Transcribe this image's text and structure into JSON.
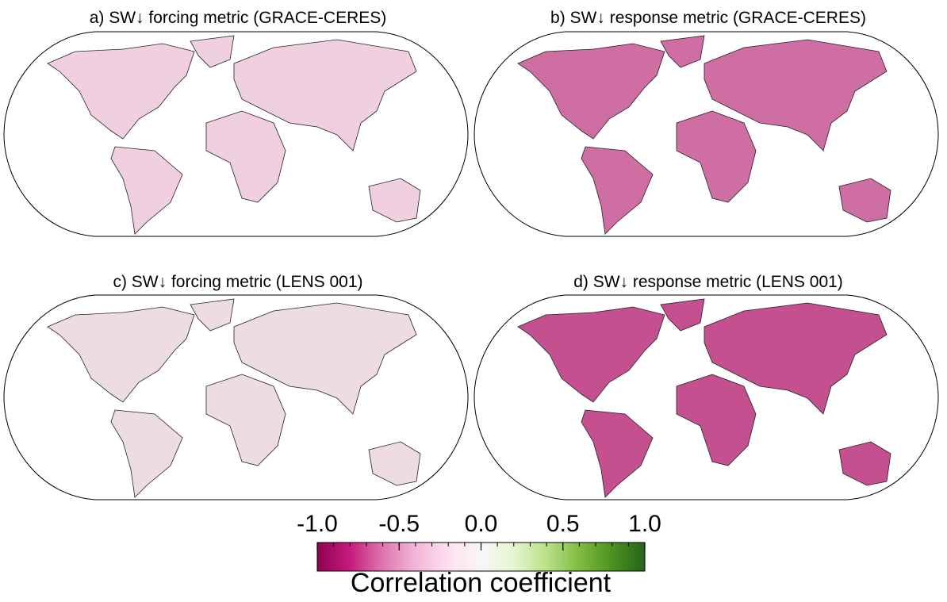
{
  "panels": [
    {
      "title": "a) SW↓ forcing metric (GRACE-CERES)"
    },
    {
      "title": "b) SW↓ response metric (GRACE-CERES)"
    },
    {
      "title": "c) SW↓ forcing metric (LENS 001)"
    },
    {
      "title": "d) SW↓ response metric (LENS 001)"
    }
  ],
  "colorbar": {
    "label": "Correlation coefficient",
    "range": [
      -1,
      1
    ],
    "ticks": [
      {
        "value": -1,
        "label": "-1.0"
      },
      -0.5,
      {
        "value": 0,
        "label": "0.0"
      },
      0.5,
      {
        "value": 1,
        "label": "1.0"
      }
    ],
    "minor_ticks": [
      -1,
      -0.9,
      -0.8,
      -0.7,
      -0.6,
      -0.5,
      -0.4,
      -0.3,
      -0.2,
      -0.1,
      0,
      0.1,
      0.2,
      0.3,
      0.4,
      0.5,
      0.6,
      0.7,
      0.8,
      0.9,
      1
    ],
    "colors": [
      "#8e0152",
      "#c51b7d",
      "#de77ae",
      "#f1b6da",
      "#fde0ef",
      "#f7f7f7",
      "#e6f5d0",
      "#b8e186",
      "#7fbc41",
      "#4d9221",
      "#276419"
    ]
  }
}
